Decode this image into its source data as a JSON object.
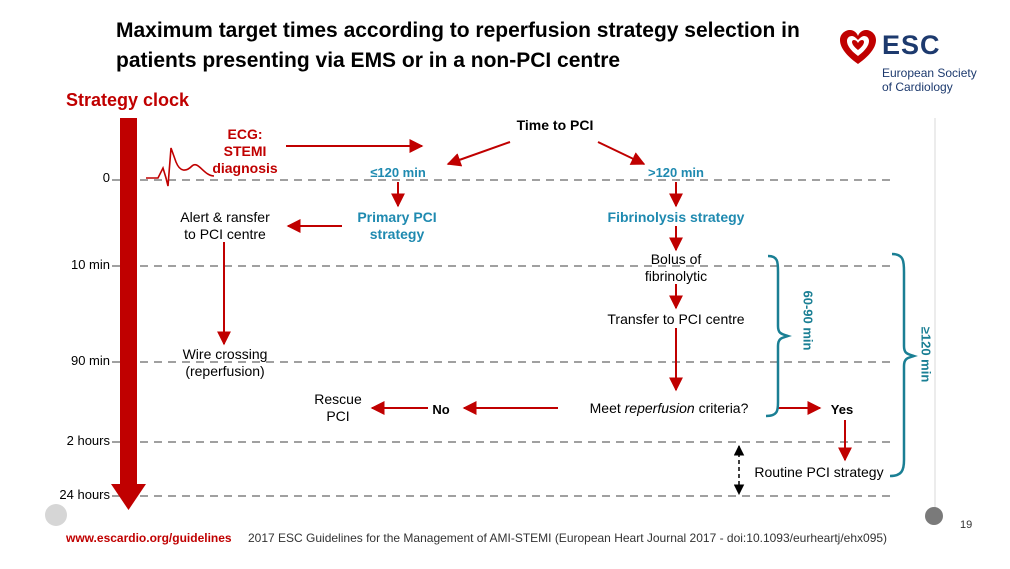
{
  "title": "Maximum target times according to reperfusion strategy selection in patients presenting via EMS or in a non-PCI centre",
  "logo": {
    "name": "ESC",
    "org_line1": "European Society",
    "org_line2": "of Cardiology"
  },
  "strategy_clock_label": "Strategy clock",
  "time_ticks": [
    "0",
    "10 min",
    "90 min",
    "2 hours",
    "24 hours"
  ],
  "nodes": {
    "ecg_line1": "ECG:",
    "ecg_line2": "STEMI",
    "ecg_line3": "diagnosis",
    "time_to_pci": "Time to PCI",
    "le120": "≤120 min",
    "gt120": ">120 min",
    "primary_line1": "Primary PCI",
    "primary_line2": "strategy",
    "fibrinolysis": "Fibrinolysis strategy",
    "alert_line1": "Alert & ransfer",
    "alert_line2": "to PCI centre",
    "bolus_line1": "Bolus of",
    "bolus_line2": "fibrinolytic",
    "transfer": "Transfer to PCI centre",
    "wire_line1": "Wire crossing",
    "wire_line2": "(reperfusion)",
    "meet_prefix": "Meet ",
    "meet_italic": "reperfusion",
    "meet_suffix": " criteria?",
    "no": "No",
    "yes": "Yes",
    "rescue_line1": "Rescue",
    "rescue_line2": "PCI",
    "routine": "Routine PCI strategy"
  },
  "brackets": {
    "inner": "60-90 min",
    "outer": "≥120 min"
  },
  "footer": {
    "url": "www.escardio.org/guidelines",
    "reference": "2017 ESC Guidelines for the Management of AMI-STEMI (European Heart Journal 2017 - doi:10.1093/eurheartj/ehx095)",
    "page": "19"
  },
  "colors": {
    "red": "#c00000",
    "blue": "#1f8ab0",
    "teal": "#1a7f94",
    "navy": "#1d3a6e"
  }
}
